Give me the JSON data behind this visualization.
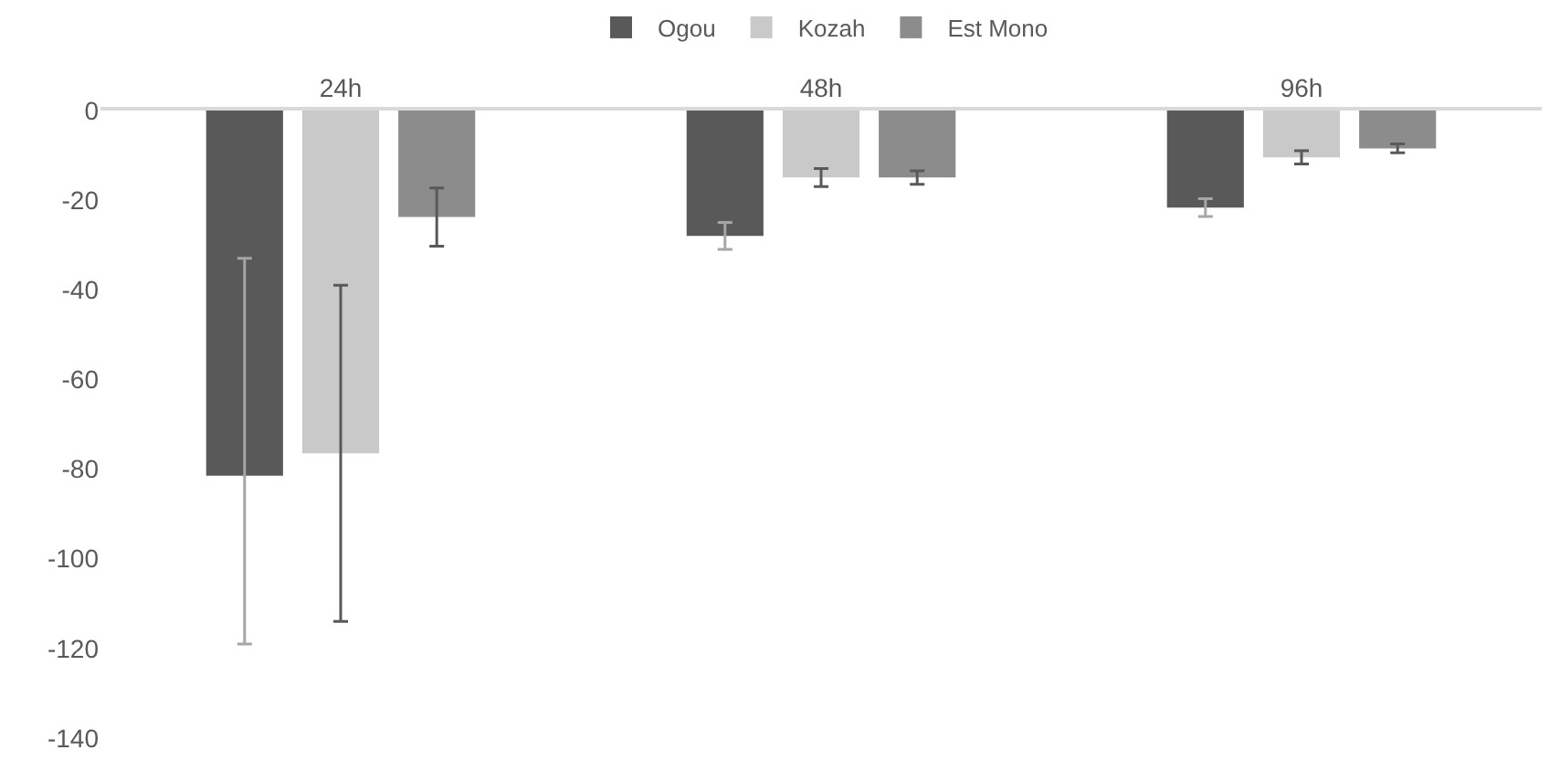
{
  "chart_data": {
    "type": "bar",
    "categories": [
      "24h",
      "48h",
      "96h"
    ],
    "series": [
      {
        "name": "Ogou",
        "color": "#595959",
        "values": [
          -81.5,
          -28,
          -21.7
        ],
        "errors": [
          [
            -119,
            -33
          ],
          3,
          2
        ]
      },
      {
        "name": "Kozah",
        "color": "#c9c9c9",
        "values": [
          -76.5,
          -15,
          -10.5
        ],
        "errors": [
          [
            -114,
            -39
          ],
          2,
          1.5
        ]
      },
      {
        "name": "Est Mono",
        "color": "#8c8c8c",
        "values": [
          -23.8,
          -15,
          -8.5
        ],
        "errors": [
          6.5,
          1.5,
          1
        ]
      }
    ],
    "ylim": [
      -140,
      0
    ],
    "yticks": [
      -140,
      -120,
      -100,
      -80,
      -60,
      -40,
      -20,
      0
    ],
    "legend": "top"
  }
}
